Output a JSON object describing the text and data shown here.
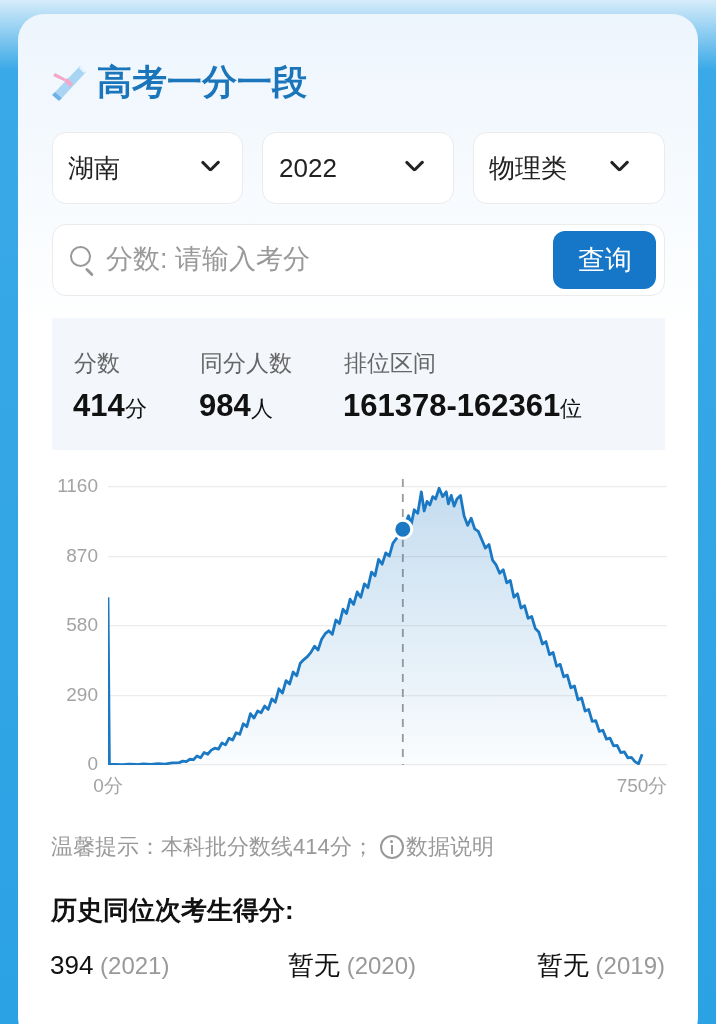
{
  "chart_data": {
    "type": "area",
    "title": "高考一分一段",
    "annotations": [
      "湖南",
      "2022",
      "物理类",
      "分数: 请输入考分",
      "查询",
      "分数",
      "同分人数",
      "排位区间",
      "414分",
      "984人",
      "161378-162361位",
      "温馨提示：本科批分数线414分；",
      "数据说明",
      "历史同位次考生得分:",
      "394 (2021)",
      "暂无 (2020)",
      "暂无 (2019)"
    ],
    "series": [
      {
        "color": "#1b79c4",
        "x": [
          0,
          2,
          10,
          20,
          30,
          40,
          50,
          60,
          70,
          80,
          90,
          100,
          105,
          110,
          115,
          120,
          125,
          130,
          135,
          140,
          145,
          150,
          155,
          160,
          165,
          170,
          175,
          180,
          185,
          190,
          195,
          200,
          205,
          210,
          215,
          220,
          225,
          230,
          235,
          240,
          245,
          250,
          255,
          260,
          265,
          270,
          275,
          280,
          285,
          290,
          295,
          300,
          305,
          310,
          315,
          320,
          325,
          330,
          335,
          340,
          345,
          350,
          355,
          360,
          365,
          370,
          375,
          380,
          385,
          390,
          395,
          400,
          405,
          410,
          414,
          418,
          422,
          426,
          430,
          435,
          440,
          444,
          448,
          452,
          456,
          460,
          465,
          470,
          475,
          478,
          482,
          486,
          490,
          495,
          500,
          505,
          510,
          515,
          520,
          525,
          530,
          535,
          540,
          545,
          550,
          555,
          560,
          565,
          570,
          575,
          580,
          585,
          590,
          595,
          600,
          605,
          610,
          615,
          620,
          625,
          630,
          635,
          640,
          645,
          650,
          655,
          660,
          665,
          670,
          675,
          680,
          685,
          690,
          695,
          700,
          705,
          710,
          715,
          720,
          725,
          730,
          735,
          740,
          745,
          750
        ],
        "values": [
          700,
          2,
          3,
          1,
          4,
          2,
          5,
          3,
          6,
          4,
          9,
          10,
          16,
          14,
          24,
          22,
          38,
          30,
          52,
          45,
          62,
          70,
          66,
          92,
          84,
          112,
          104,
          135,
          128,
          172,
          160,
          214,
          196,
          225,
          218,
          246,
          232,
          276,
          262,
          318,
          300,
          352,
          338,
          388,
          372,
          425,
          440,
          452,
          470,
          496,
          480,
          525,
          548,
          560,
          545,
          605,
          590,
          650,
          632,
          692,
          670,
          722,
          700,
          756,
          740,
          805,
          790,
          858,
          838,
          885,
          872,
          925,
          945,
          970,
          984,
          1010,
          1040,
          1005,
          1065,
          1050,
          1140,
          1060,
          1100,
          1085,
          1120,
          1110,
          1155,
          1120,
          1140,
          1090,
          1125,
          1080,
          1110,
          1125,
          1040,
          1000,
          1030,
          985,
          975,
          940,
          905,
          920,
          855,
          835,
          800,
          815,
          760,
          770,
          700,
          715,
          655,
          665,
          612,
          620,
          570,
          555,
          505,
          515,
          460,
          470,
          412,
          420,
          368,
          375,
          322,
          330,
          272,
          280,
          225,
          232,
          182,
          185,
          140,
          145,
          108,
          112,
          80,
          82,
          52,
          55,
          30,
          32,
          14,
          5,
          45
        ]
      },
      {
        "type": "scatter",
        "color": "#1b79c4",
        "marker": "circle",
        "x": [
          414
        ],
        "values": [
          984
        ]
      }
    ],
    "xlim": [
      0,
      785
    ],
    "xticks": [
      {
        "value": 0,
        "label": "0分"
      },
      {
        "value": 750,
        "label": "750分"
      }
    ],
    "ylim": [
      0,
      1160
    ],
    "yticks": [
      0,
      290,
      580,
      870,
      1160
    ],
    "grid": "y",
    "ref_lines": [
      {
        "axis": "x",
        "value": 414,
        "color": "#9a9a9a",
        "line_style": "dashed"
      }
    ]
  }
}
